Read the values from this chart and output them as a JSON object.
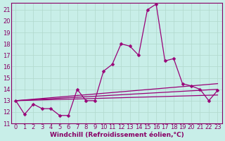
{
  "xlabel": "Windchill (Refroidissement éolien,°C)",
  "bg_color": "#c8eee8",
  "line_color": "#990077",
  "xlim": [
    -0.5,
    23.5
  ],
  "ylim": [
    11,
    21.6
  ],
  "yticks": [
    11,
    12,
    13,
    14,
    15,
    16,
    17,
    18,
    19,
    20,
    21
  ],
  "xticks": [
    0,
    1,
    2,
    3,
    4,
    5,
    6,
    7,
    8,
    9,
    10,
    11,
    12,
    13,
    14,
    15,
    16,
    17,
    18,
    19,
    20,
    21,
    22,
    23
  ],
  "main_series_x": [
    0,
    1,
    2,
    3,
    4,
    5,
    6,
    7,
    8,
    9,
    10,
    11,
    12,
    13,
    14,
    15,
    16,
    17,
    18,
    19,
    20,
    21,
    22,
    23
  ],
  "main_series_y": [
    13.0,
    11.8,
    12.7,
    12.3,
    12.3,
    11.7,
    11.7,
    14.0,
    13.0,
    13.0,
    15.6,
    16.2,
    18.0,
    17.8,
    17.0,
    21.0,
    21.5,
    16.5,
    16.7,
    14.5,
    14.3,
    14.0,
    13.0,
    13.9
  ],
  "flat_lines": [
    {
      "x": [
        0,
        23
      ],
      "y": [
        13.0,
        13.5
      ]
    },
    {
      "x": [
        0,
        23
      ],
      "y": [
        13.0,
        14.0
      ]
    },
    {
      "x": [
        0,
        23
      ],
      "y": [
        13.0,
        14.5
      ]
    }
  ],
  "font_color": "#880066",
  "grid_color": "#b0d8cc",
  "font_size": 6.5,
  "label_size": 6.0,
  "line_width": 0.9,
  "marker_size": 2.5
}
